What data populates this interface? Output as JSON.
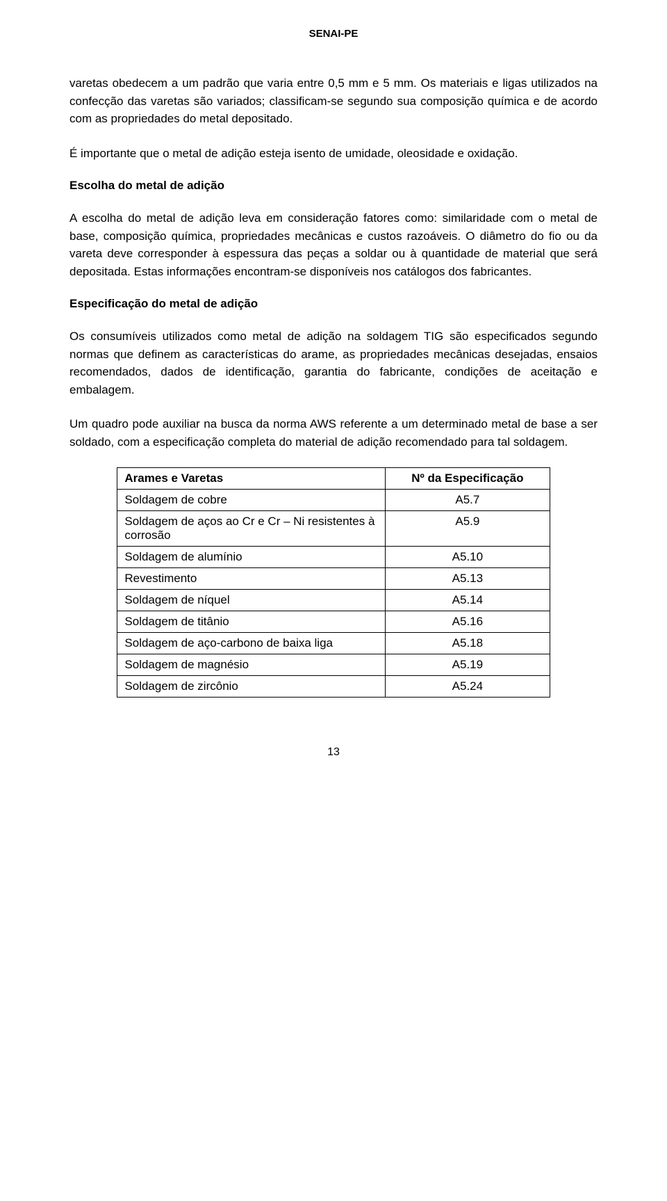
{
  "header": "SENAI-PE",
  "paragraphs": {
    "p1": "varetas obedecem a um padrão que varia entre 0,5 mm e 5 mm. Os materiais e ligas utilizados na confecção das varetas são variados; classificam-se segundo sua composição química e de acordo com as propriedades do metal depositado.",
    "p2": "É importante que o metal de adição esteja isento de umidade, oleosidade e oxidação.",
    "h1": "Escolha do metal de adição",
    "p3": "A escolha do metal de adição leva em consideração fatores como: similaridade com o metal de base, composição química, propriedades mecânicas e custos razoáveis. O diâmetro do fio ou da vareta deve corresponder à espessura das peças a soldar ou à quantidade de material que será depositada. Estas informações encontram-se disponíveis nos catálogos dos fabricantes.",
    "h2": "Especificação do metal de adição",
    "p4": "Os consumíveis utilizados como metal de adição na soldagem TIG são especificados segundo normas que definem as características do arame, as propriedades mecânicas desejadas, ensaios recomendados, dados de identificação, garantia do fabricante, condições de aceitação e embalagem.",
    "p5": "Um quadro pode auxiliar na busca da norma AWS referente a um determinado metal de base a ser soldado, com a especificação completa do material de adição recomendado para tal soldagem."
  },
  "table": {
    "head_left": "Arames e Varetas",
    "head_right": "Nº da Especificação",
    "rows": [
      {
        "l": "Soldagem de cobre",
        "r": "A5.7"
      },
      {
        "l": "Soldagem de aços ao Cr e Cr – Ni resistentes à corrosão",
        "r": "A5.9"
      },
      {
        "l": "Soldagem de alumínio",
        "r": "A5.10"
      },
      {
        "l": "Revestimento",
        "r": "A5.13"
      },
      {
        "l": "Soldagem de níquel",
        "r": "A5.14"
      },
      {
        "l": "Soldagem de titânio",
        "r": "A5.16"
      },
      {
        "l": "Soldagem de aço-carbono de baixa liga",
        "r": "A5.18"
      },
      {
        "l": "Soldagem de magnésio",
        "r": "A5.19"
      },
      {
        "l": "Soldagem de zircônio",
        "r": "A5.24"
      }
    ]
  },
  "page_number": "13"
}
